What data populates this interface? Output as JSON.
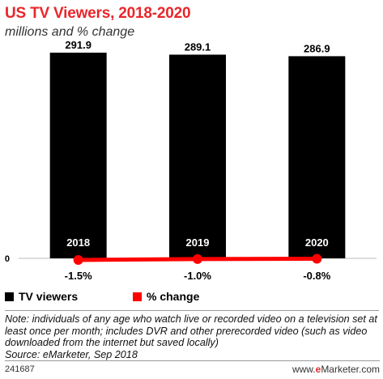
{
  "chart_data": {
    "type": "bar",
    "title": "US TV Viewers, 2018-2020",
    "subtitle": "millions and % change",
    "categories": [
      "2018",
      "2019",
      "2020"
    ],
    "series": [
      {
        "name": "TV viewers",
        "type": "bar",
        "values": [
          291.9,
          289.1,
          286.9
        ],
        "labels": [
          "291.9",
          "289.1",
          "286.9"
        ],
        "color": "#000000"
      },
      {
        "name": "% change",
        "type": "line",
        "values": [
          -1.5,
          -1.0,
          -0.8
        ],
        "labels": [
          "-1.5%",
          "-1.0%",
          "-0.8%"
        ],
        "color": "#ff0000"
      }
    ],
    "y_axis_label": "0",
    "ylim": [
      0,
      300
    ],
    "legend": "bottom-left",
    "grid": false
  },
  "note": "Note: individuals of any age who watch live or recorded video on a television set at least once per month; includes DVR and other prerecorded video (such as video downloaded from the internet but saved locally)",
  "source": "Source: eMarketer, Sep 2018",
  "footer": {
    "id": "241687",
    "brand_prefix": "www.",
    "brand_e": "e",
    "brand_rest": "Marketer.com"
  },
  "colors": {
    "accent": "#e8262b",
    "bar": "#000000",
    "line": "#ff0000"
  }
}
